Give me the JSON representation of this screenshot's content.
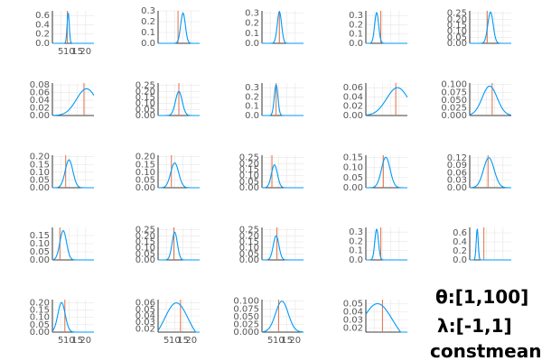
{
  "figure": {
    "xtick_labels": [
      "5",
      "10",
      "15",
      "20"
    ],
    "xtick_values": [
      5,
      10,
      15,
      20
    ],
    "colors": {
      "curve": "#009af9",
      "vline": "#e26f46",
      "grid": "#e6e6e6",
      "axis": "#000000",
      "tick_text": "#555555"
    },
    "handwritten_note": [
      "θ:[1,100]",
      "λ:[-1,1]",
      "constmean"
    ]
  },
  "chart_data": [
    {
      "type": "line",
      "xlim": [
        0,
        25
      ],
      "ylim": [
        0,
        0.7
      ],
      "yticks": [
        "0.0",
        "0.2",
        "0.4",
        "0.6"
      ],
      "ytick_values": [
        0,
        0.2,
        0.4,
        0.6
      ],
      "peak_x": 9.5,
      "peak_y": 0.65,
      "width": 0.65,
      "vline": 9.0,
      "xticks_shown": true
    },
    {
      "type": "line",
      "xlim": [
        0,
        25
      ],
      "ylim": [
        0,
        0.3
      ],
      "yticks": [
        "0.0",
        "0.1",
        "0.2",
        "0.3"
      ],
      "ytick_values": [
        0,
        0.1,
        0.2,
        0.3
      ],
      "peak_x": 15.0,
      "peak_y": 0.28,
      "width": 1.4,
      "vline": 12.0,
      "xticks_shown": false
    },
    {
      "type": "line",
      "xlim": [
        0,
        25
      ],
      "ylim": [
        0,
        0.32
      ],
      "yticks": [
        "0.0",
        "0.1",
        "0.2",
        "0.3"
      ],
      "ytick_values": [
        0,
        0.1,
        0.2,
        0.3
      ],
      "peak_x": 10.5,
      "peak_y": 0.31,
      "width": 1.3,
      "vline": 10.5,
      "xticks_shown": false
    },
    {
      "type": "line",
      "xlim": [
        0,
        25
      ],
      "ylim": [
        0,
        0.35
      ],
      "yticks": [
        "0.0",
        "0.1",
        "0.2",
        "0.3"
      ],
      "ytick_values": [
        0,
        0.1,
        0.2,
        0.3
      ],
      "peak_x": 6.5,
      "peak_y": 0.33,
      "width": 1.2,
      "vline": 9.0,
      "xticks_shown": false
    },
    {
      "type": "line",
      "xlim": [
        0,
        25
      ],
      "ylim": [
        0,
        0.27
      ],
      "yticks": [
        "0.00",
        "0.05",
        "0.10",
        "0.15",
        "0.20",
        "0.25"
      ],
      "ytick_values": [
        0,
        0.05,
        0.1,
        0.15,
        0.2,
        0.25
      ],
      "peak_x": 12.5,
      "peak_y": 0.26,
      "width": 1.6,
      "vline": 10.5,
      "xticks_shown": false
    },
    {
      "type": "line",
      "xlim": [
        0,
        25
      ],
      "ylim": [
        0,
        0.085
      ],
      "yticks": [
        "0.00",
        "0.02",
        "0.04",
        "0.06",
        "0.08"
      ],
      "ytick_values": [
        0,
        0.02,
        0.04,
        0.06,
        0.08
      ],
      "peak_x": 20.5,
      "peak_y": 0.07,
      "width": 6.0,
      "vline": 19.0,
      "xticks_shown": false
    },
    {
      "type": "line",
      "xlim": [
        0,
        25
      ],
      "ylim": [
        0,
        0.27
      ],
      "yticks": [
        "0.00",
        "0.05",
        "0.10",
        "0.15",
        "0.20",
        "0.25"
      ],
      "ytick_values": [
        0,
        0.05,
        0.1,
        0.15,
        0.2,
        0.25
      ],
      "peak_x": 12.5,
      "peak_y": 0.2,
      "width": 2.0,
      "vline": 12.5,
      "xticks_shown": false
    },
    {
      "type": "line",
      "xlim": [
        0,
        25
      ],
      "ylim": [
        0,
        0.35
      ],
      "yticks": [
        "0.0",
        "0.1",
        "0.2",
        "0.3"
      ],
      "ytick_values": [
        0,
        0.1,
        0.2,
        0.3
      ],
      "peak_x": 8.5,
      "peak_y": 0.33,
      "width": 1.1,
      "vline": 8.5,
      "xticks_shown": false
    },
    {
      "type": "line",
      "xlim": [
        0,
        25
      ],
      "ylim": [
        0,
        0.07
      ],
      "yticks": [
        "0.00",
        "0.02",
        "0.04",
        "0.06"
      ],
      "ytick_values": [
        0,
        0.02,
        0.04,
        0.06
      ],
      "peak_x": 19.0,
      "peak_y": 0.06,
      "width": 6.5,
      "vline": 18.0,
      "xticks_shown": false
    },
    {
      "type": "line",
      "xlim": [
        0,
        25
      ],
      "ylim": [
        0,
        0.105
      ],
      "yticks": [
        "0.000",
        "0.025",
        "0.050",
        "0.075",
        "0.100"
      ],
      "ytick_values": [
        0,
        0.025,
        0.05,
        0.075,
        0.1
      ],
      "peak_x": 12.0,
      "peak_y": 0.095,
      "width": 4.5,
      "vline": 13.5,
      "xticks_shown": false
    },
    {
      "type": "line",
      "xlim": [
        0,
        25
      ],
      "ylim": [
        0,
        0.21
      ],
      "yticks": [
        "0.00",
        "0.05",
        "0.10",
        "0.15",
        "0.20"
      ],
      "ytick_values": [
        0,
        0.05,
        0.1,
        0.15,
        0.2
      ],
      "peak_x": 10.0,
      "peak_y": 0.18,
      "width": 2.3,
      "vline": 8.0,
      "xticks_shown": false
    },
    {
      "type": "line",
      "xlim": [
        0,
        25
      ],
      "ylim": [
        0,
        0.21
      ],
      "yticks": [
        "0.00",
        "0.05",
        "0.10",
        "0.15",
        "0.20"
      ],
      "ytick_values": [
        0,
        0.05,
        0.1,
        0.15,
        0.2
      ],
      "peak_x": 10.0,
      "peak_y": 0.16,
      "width": 2.4,
      "vline": 8.0,
      "xticks_shown": false
    },
    {
      "type": "line",
      "xlim": [
        0,
        25
      ],
      "ylim": [
        0,
        0.27
      ],
      "yticks": [
        "0.00",
        "0.05",
        "0.10",
        "0.15",
        "0.20",
        "0.25"
      ],
      "ytick_values": [
        0,
        0.05,
        0.1,
        0.15,
        0.2,
        0.25
      ],
      "peak_x": 7.5,
      "peak_y": 0.19,
      "width": 1.8,
      "vline": 6.0,
      "xticks_shown": false
    },
    {
      "type": "line",
      "xlim": [
        0,
        25
      ],
      "ylim": [
        0,
        0.16
      ],
      "yticks": [
        "0.00",
        "0.05",
        "0.10",
        "0.15"
      ],
      "ytick_values": [
        0,
        0.05,
        0.1,
        0.15
      ],
      "peak_x": 12.0,
      "peak_y": 0.15,
      "width": 2.6,
      "vline": 10.5,
      "xticks_shown": false
    },
    {
      "type": "line",
      "xlim": [
        0,
        25
      ],
      "ylim": [
        0,
        0.13
      ],
      "yticks": [
        "0.00",
        "0.03",
        "0.06",
        "0.09",
        "0.12"
      ],
      "ytick_values": [
        0,
        0.03,
        0.06,
        0.09,
        0.12
      ],
      "peak_x": 11.5,
      "peak_y": 0.12,
      "width": 3.2,
      "vline": 11.0,
      "xticks_shown": false
    },
    {
      "type": "line",
      "xlim": [
        0,
        25
      ],
      "ylim": [
        0,
        0.2
      ],
      "yticks": [
        "0.00",
        "0.05",
        "0.10",
        "0.15"
      ],
      "ytick_values": [
        0,
        0.05,
        0.1,
        0.15
      ],
      "peak_x": 6.5,
      "peak_y": 0.18,
      "width": 2.0,
      "vline": 4.5,
      "xticks_shown": false
    },
    {
      "type": "line",
      "xlim": [
        0,
        25
      ],
      "ylim": [
        0,
        0.27
      ],
      "yticks": [
        "0.00",
        "0.05",
        "0.10",
        "0.15",
        "0.20",
        "0.25"
      ],
      "ytick_values": [
        0,
        0.05,
        0.1,
        0.15,
        0.2,
        0.25
      ],
      "peak_x": 10.0,
      "peak_y": 0.23,
      "width": 1.6,
      "vline": 9.5,
      "xticks_shown": false
    },
    {
      "type": "line",
      "xlim": [
        0,
        25
      ],
      "ylim": [
        0,
        0.27
      ],
      "yticks": [
        "0.00",
        "0.05",
        "0.10",
        "0.15",
        "0.20",
        "0.25"
      ],
      "ytick_values": [
        0,
        0.05,
        0.1,
        0.15,
        0.2,
        0.25
      ],
      "peak_x": 8.5,
      "peak_y": 0.2,
      "width": 1.7,
      "vline": 9.0,
      "xticks_shown": false
    },
    {
      "type": "line",
      "xlim": [
        0,
        25
      ],
      "ylim": [
        0,
        0.35
      ],
      "yticks": [
        "0.0",
        "0.1",
        "0.2",
        "0.3"
      ],
      "ytick_values": [
        0,
        0.1,
        0.2,
        0.3
      ],
      "peak_x": 6.5,
      "peak_y": 0.33,
      "width": 1.1,
      "vline": 9.0,
      "xticks_shown": false
    },
    {
      "type": "line",
      "xlim": [
        0,
        25
      ],
      "ylim": [
        0,
        0.72
      ],
      "yticks": [
        "0.0",
        "0.2",
        "0.4",
        "0.6"
      ],
      "ytick_values": [
        0,
        0.2,
        0.4,
        0.6
      ],
      "peak_x": 4.5,
      "peak_y": 0.68,
      "width": 0.6,
      "vline": 8.5,
      "xticks_shown": false
    },
    {
      "type": "line",
      "xlim": [
        0,
        25
      ],
      "ylim": [
        0,
        0.22
      ],
      "yticks": [
        "0.00",
        "0.05",
        "0.10",
        "0.15",
        "0.20"
      ],
      "ytick_values": [
        0,
        0.05,
        0.1,
        0.15,
        0.2
      ],
      "peak_x": 5.5,
      "peak_y": 0.2,
      "width": 2.2,
      "vline": 7.5,
      "xticks_shown": true
    },
    {
      "type": "line",
      "xlim": [
        0,
        25
      ],
      "ylim": [
        0.015,
        0.065
      ],
      "yticks": [
        "0.02",
        "0.03",
        "0.04",
        "0.05",
        "0.06"
      ],
      "ytick_values": [
        0.02,
        0.03,
        0.04,
        0.05,
        0.06
      ],
      "peak_x": 11.0,
      "peak_y": 0.06,
      "width": 7.0,
      "vline": 13.5,
      "xticks_shown": true
    },
    {
      "type": "line",
      "xlim": [
        0,
        25
      ],
      "ylim": [
        0,
        0.105
      ],
      "yticks": [
        "0.000",
        "0.025",
        "0.050",
        "0.075",
        "0.100"
      ],
      "ytick_values": [
        0,
        0.025,
        0.05,
        0.075,
        0.1
      ],
      "peak_x": 12.0,
      "peak_y": 0.1,
      "width": 3.8,
      "vline": 10.0,
      "xticks_shown": true
    },
    {
      "type": "line",
      "xlim": [
        0,
        25
      ],
      "ylim": [
        0.015,
        0.055
      ],
      "yticks": [
        "0.02",
        "0.03",
        "0.04",
        "0.05"
      ],
      "ytick_values": [
        0.02,
        0.03,
        0.04,
        0.05
      ],
      "peak_x": 7.0,
      "peak_y": 0.05,
      "width": 9.0,
      "vline": 10.0,
      "xticks_shown": false
    }
  ]
}
